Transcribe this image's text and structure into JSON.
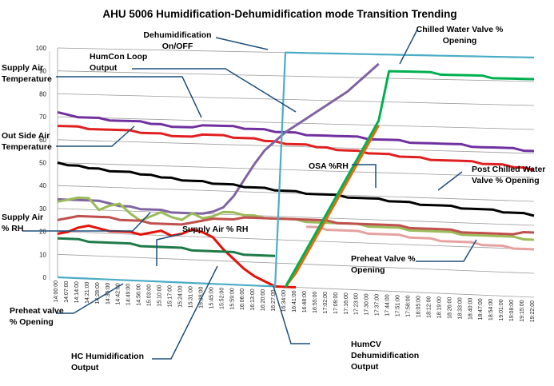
{
  "chart_data": {
    "type": "line",
    "title": "AHU 5006 Humidification-Dehumidification  mode Transition Trending",
    "ylim": [
      0,
      100
    ],
    "yticks": [
      0,
      10,
      20,
      30,
      40,
      50,
      60,
      70,
      80,
      90,
      100
    ],
    "grid": true,
    "categories": [
      "14:00:00",
      "14:07:00",
      "14:14:00",
      "14:21:00",
      "14:28:00",
      "14:35:00",
      "14:42:00",
      "14:49:00",
      "14:56:00",
      "15:03:00",
      "15:10:00",
      "15:17:00",
      "15:24:00",
      "15:31:00",
      "15:38:00",
      "15:45:00",
      "15:52:00",
      "15:59:00",
      "16:06:00",
      "16:13:00",
      "16:20:00",
      "16:27:00",
      "16:34:00",
      "16:41:00",
      "16:48:00",
      "16:55:00",
      "17:02:00",
      "17:09:00",
      "17:16:00",
      "17:23:00",
      "17:30:00",
      "17:37:00",
      "17:44:00",
      "17:51:00",
      "17:58:00",
      "18:05:00",
      "18:12:00",
      "18:19:00",
      "18:26:00",
      "18:33:00",
      "18:40:00",
      "18:47:00",
      "18:54:00",
      "19:01:00",
      "19:08:00",
      "19:15:00",
      "19:22:00"
    ],
    "series": [
      {
        "id": "supply_air_temp",
        "color": "#7030a0",
        "values": [
          72,
          71,
          70,
          70,
          70,
          69,
          69,
          69,
          69,
          68,
          68,
          67,
          67,
          67,
          68,
          68,
          68,
          68,
          67,
          67,
          67,
          66,
          66,
          66,
          65,
          65,
          65,
          65,
          65,
          65,
          64,
          64,
          64,
          64,
          63,
          63,
          63,
          63,
          63,
          63,
          62,
          62,
          62,
          62,
          62,
          61,
          61
        ]
      },
      {
        "id": "outside_air_temp",
        "color": "#e02020",
        "values": [
          66,
          66,
          66,
          65,
          65,
          65,
          65,
          65,
          64,
          64,
          64,
          63,
          63,
          63,
          64,
          64,
          64,
          63,
          63,
          63,
          62,
          62,
          61,
          61,
          61,
          60,
          60,
          59,
          59,
          59,
          58,
          58,
          58,
          57,
          57,
          57,
          56,
          56,
          56,
          56,
          56,
          55,
          55,
          55,
          54,
          54,
          53
        ]
      },
      {
        "id": "humcon_loop_output",
        "color": "#8064a2",
        "values": [
          34,
          34,
          34,
          34,
          34,
          33,
          32,
          32,
          31,
          31,
          31,
          30,
          30,
          30,
          30,
          31,
          33,
          38,
          45,
          52,
          58,
          62,
          66,
          69,
          72,
          75,
          78,
          81,
          84,
          88,
          92,
          96,
          null,
          null,
          null,
          null,
          null,
          null,
          null,
          null,
          null,
          null,
          null,
          null,
          null,
          null,
          null
        ]
      },
      {
        "id": "osa_rh",
        "color": "#000000",
        "values": [
          50,
          49,
          49,
          48,
          48,
          47,
          47,
          47,
          46,
          46,
          45,
          45,
          44,
          44,
          44,
          43,
          43,
          43,
          42,
          42,
          42,
          41,
          41,
          41,
          40,
          40,
          40,
          40,
          39,
          39,
          39,
          39,
          38,
          38,
          38,
          37,
          37,
          37,
          37,
          36,
          36,
          36,
          36,
          35,
          35,
          35,
          34
        ]
      },
      {
        "id": "post_chilled_water_valve",
        "color": "#9bbb59",
        "values": [
          33,
          34,
          35,
          35,
          30,
          32,
          33,
          29,
          26,
          28,
          30,
          28,
          27,
          30,
          28,
          29,
          31,
          31,
          30,
          30,
          29,
          29,
          29,
          29,
          28,
          28,
          28,
          28,
          28,
          28,
          27,
          27,
          27,
          27,
          26,
          26,
          26,
          26,
          26,
          25,
          25,
          25,
          25,
          25,
          25,
          24,
          24
        ]
      },
      {
        "id": "supply_air_rh",
        "color": "#c0504d",
        "values": [
          25,
          26,
          27,
          27,
          27,
          27,
          26,
          26,
          26,
          25,
          25,
          25,
          25,
          26,
          27,
          28,
          28,
          28,
          29,
          29,
          29,
          29,
          29,
          29,
          29,
          29,
          29,
          28,
          28,
          28,
          28,
          28,
          28,
          28,
          27,
          27,
          27,
          27,
          27,
          26,
          26,
          26,
          26,
          26,
          26,
          27,
          27
        ]
      },
      {
        "id": "preheat_valve",
        "color": "#e6a1a1",
        "values": [
          null,
          null,
          null,
          null,
          null,
          null,
          null,
          null,
          null,
          null,
          null,
          null,
          null,
          null,
          null,
          null,
          null,
          null,
          null,
          null,
          null,
          null,
          null,
          null,
          26,
          26,
          25,
          25,
          25,
          25,
          24,
          24,
          24,
          24,
          23,
          23,
          23,
          22,
          22,
          22,
          22,
          21,
          21,
          21,
          20,
          20,
          20
        ]
      },
      {
        "id": "hc_humidification_output",
        "color": "#e3120b",
        "values": [
          19,
          20,
          22,
          23,
          22,
          21,
          21,
          21,
          20,
          21,
          22,
          20,
          21,
          23,
          22,
          20,
          15,
          11,
          7,
          4,
          2,
          0,
          0,
          0,
          null,
          null,
          null,
          null,
          null,
          null,
          null,
          null,
          null,
          null,
          null,
          null,
          null,
          null,
          null,
          null,
          null,
          null,
          null,
          null,
          null,
          null,
          null
        ]
      },
      {
        "id": "preheat_valve_opening",
        "color": "#1f7a48",
        "values": [
          17,
          17,
          17,
          16,
          16,
          16,
          16,
          16,
          15,
          15,
          15,
          15,
          15,
          14,
          14,
          14,
          14,
          14,
          13,
          13,
          13,
          13,
          null,
          null,
          null,
          null,
          null,
          null,
          null,
          null,
          null,
          null,
          null,
          null,
          null,
          null,
          null,
          null,
          null,
          null,
          null,
          null,
          null,
          null,
          null,
          null,
          null
        ]
      },
      {
        "id": "humcv_dehumidification_output",
        "color": "#e46c0a",
        "values": [
          null,
          null,
          null,
          null,
          null,
          null,
          null,
          null,
          null,
          null,
          null,
          null,
          null,
          null,
          null,
          null,
          null,
          null,
          null,
          null,
          null,
          null,
          0,
          6,
          14,
          22,
          30,
          38,
          46,
          54,
          62,
          70,
          null,
          null,
          null,
          null,
          null,
          null,
          null,
          null,
          null,
          null,
          null,
          null,
          null,
          null,
          null
        ]
      },
      {
        "id": "chilled_water_valve",
        "color": "#00b050",
        "values": [
          null,
          null,
          null,
          null,
          null,
          null,
          null,
          null,
          null,
          null,
          null,
          null,
          null,
          null,
          null,
          null,
          null,
          null,
          null,
          null,
          null,
          null,
          0,
          8,
          16,
          24,
          32,
          40,
          48,
          56,
          64,
          72,
          93,
          93,
          93,
          93,
          93,
          92,
          92,
          92,
          92,
          92,
          91,
          91,
          91,
          91,
          91
        ]
      },
      {
        "id": "dehumidification_on_off",
        "color": "#4bacc6",
        "values": [
          0,
          0,
          0,
          0,
          0,
          0,
          0,
          0,
          0,
          0,
          0,
          0,
          0,
          0,
          0,
          0,
          0,
          0,
          0,
          0,
          0,
          0,
          100,
          100,
          100,
          100,
          100,
          100,
          100,
          100,
          100,
          100,
          100,
          100,
          100,
          100,
          100,
          100,
          100,
          100,
          100,
          100,
          100,
          100,
          100,
          100,
          100
        ]
      }
    ],
    "annotations": [
      {
        "id": "dehum-onoff",
        "lines": [
          "Dehumidification",
          "On/OFF"
        ]
      },
      {
        "id": "chw-valve",
        "lines": [
          "Chilled Water Valve %",
          "Opening"
        ]
      },
      {
        "id": "humcon",
        "lines": [
          "HumCon Loop",
          "Output"
        ]
      },
      {
        "id": "supply-temp",
        "lines": [
          "Supply Air",
          "Temperature"
        ]
      },
      {
        "id": "outside-temp",
        "lines": [
          "Out Side Air",
          "Temperature"
        ]
      },
      {
        "id": "osa-rh",
        "lines": [
          "OSA %RH"
        ]
      },
      {
        "id": "post-chw",
        "lines": [
          "Post Chilled Water",
          "Valve % Opening"
        ]
      },
      {
        "id": "supply-rh-left",
        "lines": [
          "Supply Air",
          "% RH"
        ]
      },
      {
        "id": "supply-rh-mid",
        "lines": [
          "Supply Air % RH"
        ]
      },
      {
        "id": "preheat-valve",
        "lines": [
          "Preheat Valve %",
          "Opening"
        ]
      },
      {
        "id": "preheat-left",
        "lines": [
          "Preheat valve",
          "% Opening"
        ]
      },
      {
        "id": "hc-hum",
        "lines": [
          "HC Humidification",
          "Output"
        ]
      },
      {
        "id": "humcv",
        "lines": [
          "HumCV",
          "Dehumidification",
          "Output"
        ]
      }
    ]
  }
}
